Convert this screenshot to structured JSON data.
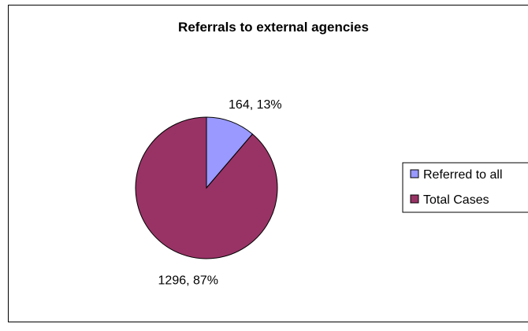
{
  "chart_data": {
    "type": "pie",
    "title": "Referrals to external agencies",
    "categories": [
      "Referred to all",
      "Total Cases"
    ],
    "values": [
      164,
      1296
    ],
    "percentages": [
      13,
      87
    ],
    "data_labels": [
      "164, 13%",
      "1296, 87%"
    ],
    "colors": [
      "#9999ff",
      "#993366"
    ],
    "legend_position": "right"
  }
}
